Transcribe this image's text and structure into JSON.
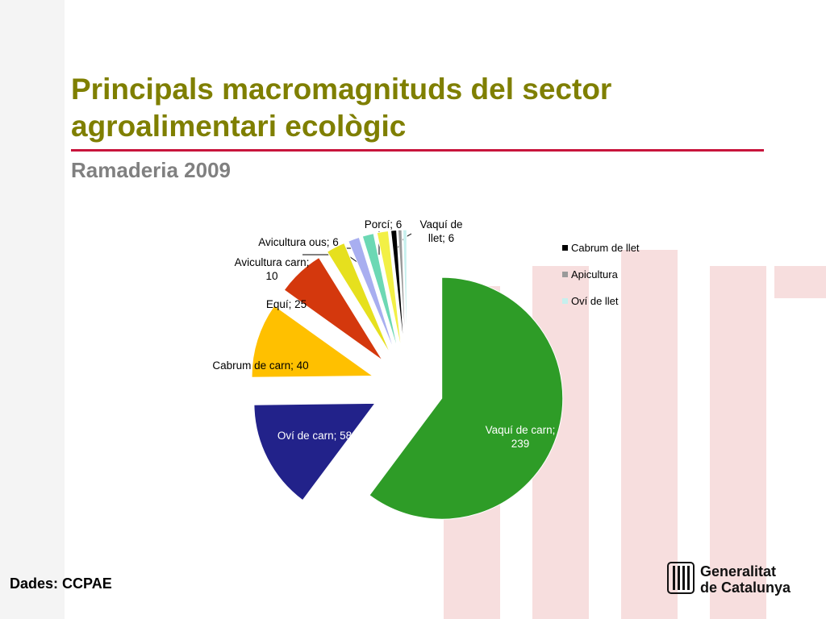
{
  "header": {
    "title": "Principals macromagnituds del sector agroalimentari ecològic",
    "subtitle": "Ramaderia 2009"
  },
  "chart_data": {
    "type": "pie",
    "categories": [
      "Vaquí de carn",
      "Oví de carn",
      "Cabrum de carn",
      "Equí",
      "Avicultura carn",
      "Avicultura ous",
      "Porcí",
      "Vaquí de llet",
      "Cabrum de llet",
      "Apicultura",
      "Oví de llet"
    ],
    "values": [
      239,
      58,
      40,
      25,
      10,
      6,
      6,
      6,
      3,
      2,
      2
    ],
    "value_labels": [
      "Vaquí de carn; 239",
      "Oví de carn; 58",
      "Cabrum de carn; 40",
      "Equí; 25",
      "Avicultura carn; 10",
      "Avicultura ous; 6",
      "Porcí; 6",
      "Vaquí de llet; 6",
      null,
      null,
      null
    ],
    "colors": [
      "#2e9c27",
      "#22228a",
      "#ffc000",
      "#d4380d",
      "#e6e01e",
      "#a8aef0",
      "#6cd8b4",
      "#f2f046",
      "#000000",
      "#9a9a9a",
      "#c6f0ee"
    ]
  },
  "footer": {
    "source": "Dades: CCPAE",
    "logo": [
      "Generalitat",
      "de Catalunya"
    ]
  }
}
